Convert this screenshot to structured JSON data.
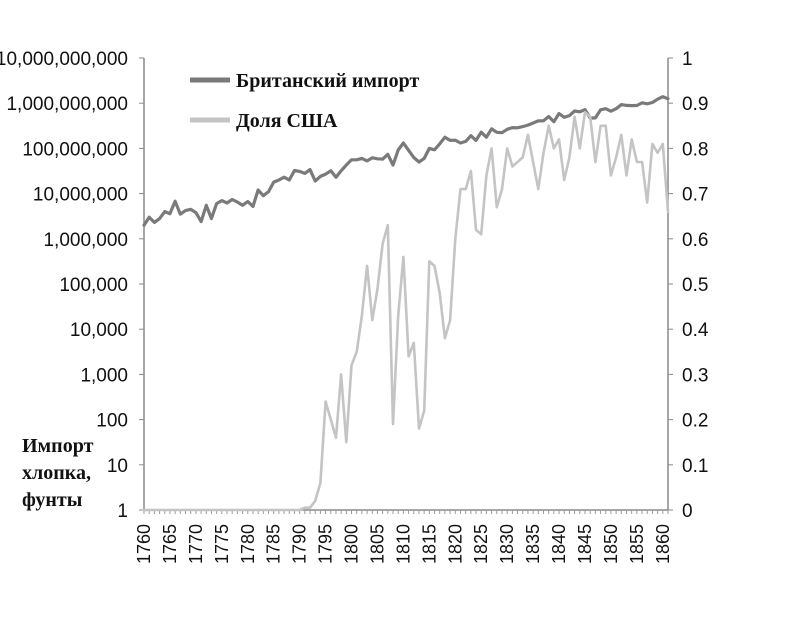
{
  "chart_data": {
    "type": "line",
    "title": "",
    "xlabel": "",
    "ylabel_lines": [
      "Импорт",
      "хлопка,",
      "фунты"
    ],
    "legend_position": "top-left",
    "grid": false,
    "xlim": [
      1760,
      1861
    ],
    "ylim_left": [
      1,
      10000000000
    ],
    "yscale_left": "log",
    "ylim_right": [
      0,
      1
    ],
    "x_ticks": [
      1760,
      1765,
      1770,
      1775,
      1780,
      1785,
      1790,
      1795,
      1800,
      1805,
      1810,
      1815,
      1820,
      1825,
      1830,
      1835,
      1840,
      1845,
      1850,
      1855,
      1860
    ],
    "y_left_ticks": [
      "1",
      "10",
      "100",
      "1,000",
      "10,000",
      "100,000",
      "1,000,000",
      "10,000,000",
      "100,000,000",
      "1,000,000,000",
      "10,000,000,000"
    ],
    "y_right_ticks": [
      "0",
      "0.1",
      "0.2",
      "0.3",
      "0.4",
      "0.5",
      "0.6",
      "0.7",
      "0.8",
      "0.9",
      "1"
    ],
    "x": [
      1760,
      1761,
      1762,
      1763,
      1764,
      1765,
      1766,
      1767,
      1768,
      1769,
      1770,
      1771,
      1772,
      1773,
      1774,
      1775,
      1776,
      1777,
      1778,
      1779,
      1780,
      1781,
      1782,
      1783,
      1784,
      1785,
      1786,
      1787,
      1788,
      1789,
      1790,
      1791,
      1792,
      1793,
      1794,
      1795,
      1796,
      1797,
      1798,
      1799,
      1800,
      1801,
      1802,
      1803,
      1804,
      1805,
      1806,
      1807,
      1808,
      1809,
      1810,
      1811,
      1812,
      1813,
      1814,
      1815,
      1816,
      1817,
      1818,
      1819,
      1820,
      1821,
      1822,
      1823,
      1824,
      1825,
      1826,
      1827,
      1828,
      1829,
      1830,
      1831,
      1832,
      1833,
      1834,
      1835,
      1836,
      1837,
      1838,
      1839,
      1840,
      1841,
      1842,
      1843,
      1844,
      1845,
      1846,
      1847,
      1848,
      1849,
      1850,
      1851,
      1852,
      1853,
      1854,
      1855,
      1856,
      1857,
      1858,
      1859,
      1860,
      1861
    ],
    "series": [
      {
        "name": "Британский импорт",
        "axis": "left",
        "color": "#7a7a7a",
        "values": [
          2000000,
          3000000,
          2300000,
          2800000,
          4000000,
          3600000,
          6800000,
          3500000,
          4200000,
          4500000,
          3800000,
          2400000,
          5500000,
          2800000,
          6000000,
          7000000,
          6200000,
          7400000,
          6500000,
          5500000,
          6700000,
          5200000,
          12000000,
          9000000,
          11000000,
          18000000,
          20000000,
          23000000,
          20000000,
          32500000,
          31000000,
          28000000,
          34000000,
          19000000,
          24000000,
          27000000,
          32000000,
          23000000,
          32000000,
          43000000,
          56000000,
          56000000,
          60000000,
          53000000,
          62000000,
          59000000,
          58000000,
          74000000,
          43000000,
          92000000,
          132000000,
          91000000,
          63000000,
          50000000,
          60000000,
          100000000,
          93000000,
          126000000,
          177000000,
          150000000,
          152000000,
          132000000,
          143000000,
          191000000,
          150000000,
          228000000,
          177000000,
          272000000,
          227000000,
          222000000,
          264000000,
          288000000,
          286000000,
          303000000,
          327000000,
          364000000,
          406000000,
          407000000,
          507000000,
          389000000,
          592000000,
          488000000,
          532000000,
          673000000,
          646000000,
          722000000,
          468000000,
          474000000,
          713000000,
          755000000,
          664000000,
          757000000,
          930000000,
          895000000,
          887000000,
          891000000,
          1023000000,
          970000000,
          1034000000,
          1226000000,
          1391000000,
          1257000000
        ]
      },
      {
        "name": "Доля США",
        "axis": "right",
        "color": "#c4c4c4",
        "values": [
          0,
          0,
          0,
          0,
          0,
          0,
          0,
          0,
          0,
          0,
          0,
          0,
          0,
          0,
          0,
          0,
          0,
          0,
          0,
          0,
          0,
          0,
          0,
          0,
          0,
          0,
          0,
          0,
          0,
          0,
          0,
          0.005,
          0.005,
          0.02,
          0.06,
          0.24,
          0.2,
          0.16,
          0.3,
          0.15,
          0.32,
          0.35,
          0.43,
          0.54,
          0.42,
          0.49,
          0.59,
          0.63,
          0.19,
          0.43,
          0.56,
          0.34,
          0.37,
          0.18,
          0.22,
          0.55,
          0.54,
          0.48,
          0.38,
          0.42,
          0.6,
          0.71,
          0.71,
          0.75,
          0.62,
          0.61,
          0.74,
          0.8,
          0.67,
          0.71,
          0.8,
          0.76,
          0.77,
          0.78,
          0.83,
          0.77,
          0.71,
          0.79,
          0.85,
          0.8,
          0.82,
          0.73,
          0.78,
          0.87,
          0.8,
          0.88,
          0.87,
          0.77,
          0.85,
          0.85,
          0.74,
          0.78,
          0.83,
          0.74,
          0.82,
          0.77,
          0.77,
          0.68,
          0.81,
          0.79,
          0.81,
          0.66
        ]
      }
    ]
  }
}
